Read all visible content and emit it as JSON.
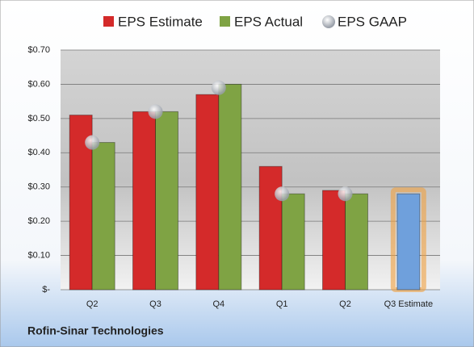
{
  "chart_data": {
    "type": "bar",
    "footer": "Rofin-Sinar Technologies",
    "categories": [
      "Q2",
      "Q3",
      "Q4",
      "Q1",
      "Q2",
      "Q3 Estimate"
    ],
    "series": [
      {
        "name": "EPS Estimate",
        "color": "#d42a2a",
        "values": [
          0.51,
          0.52,
          0.57,
          0.36,
          0.29,
          0.28
        ]
      },
      {
        "name": "EPS Actual",
        "color": "#7fa344",
        "values": [
          0.43,
          0.52,
          0.6,
          0.28,
          0.28,
          null
        ]
      },
      {
        "name": "EPS GAAP",
        "color": "#b8bcc4",
        "values": [
          0.43,
          0.52,
          0.59,
          0.28,
          0.28,
          null
        ]
      }
    ],
    "highlight_color": "#6fa0dc",
    "ylim": [
      0,
      0.7
    ],
    "yticks": [
      {
        "value": 0,
        "label": "$-"
      },
      {
        "value": 0.1,
        "label": "$0.10"
      },
      {
        "value": 0.2,
        "label": "$0.20"
      },
      {
        "value": 0.3,
        "label": "$0.30"
      },
      {
        "value": 0.4,
        "label": "$0.40"
      },
      {
        "value": 0.5,
        "label": "$0.50"
      },
      {
        "value": 0.6,
        "label": "$0.60"
      },
      {
        "value": 0.7,
        "label": "$0.70"
      }
    ],
    "grid": true
  }
}
